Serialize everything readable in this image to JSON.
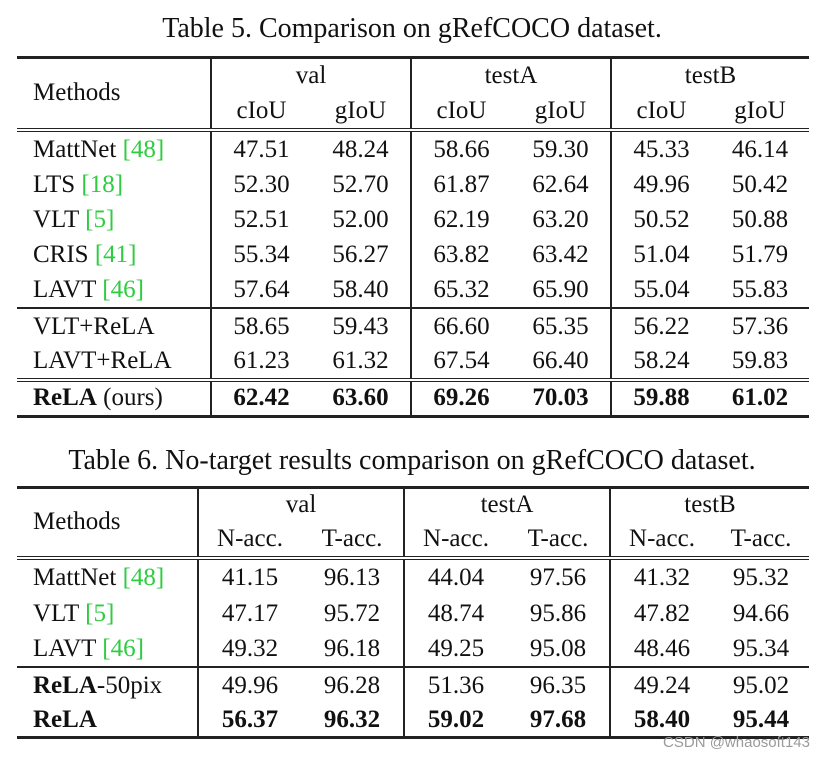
{
  "table5": {
    "caption": "Table 5. Comparison on gRefCOCO dataset.",
    "header": {
      "methods": "Methods",
      "groups": [
        "val",
        "testA",
        "testB"
      ],
      "metrics": [
        "cIoU",
        "gIoU",
        "cIoU",
        "gIoU",
        "cIoU",
        "gIoU"
      ]
    },
    "rows": [
      {
        "name": "MattNet",
        "cite": "48",
        "values": [
          "47.51",
          "48.24",
          "58.66",
          "59.30",
          "45.33",
          "46.14"
        ]
      },
      {
        "name": "LTS",
        "cite": "18",
        "values": [
          "52.30",
          "52.70",
          "61.87",
          "62.64",
          "49.96",
          "50.42"
        ]
      },
      {
        "name": "VLT",
        "cite": "5",
        "values": [
          "52.51",
          "52.00",
          "62.19",
          "63.20",
          "50.52",
          "50.88"
        ]
      },
      {
        "name": "CRIS",
        "cite": "41",
        "values": [
          "55.34",
          "56.27",
          "63.82",
          "63.42",
          "51.04",
          "51.79"
        ]
      },
      {
        "name": "LAVT",
        "cite": "46",
        "values": [
          "57.64",
          "58.40",
          "65.32",
          "65.90",
          "55.04",
          "55.83"
        ]
      },
      {
        "name": "VLT+ReLA",
        "values": [
          "58.65",
          "59.43",
          "66.60",
          "65.35",
          "56.22",
          "57.36"
        ]
      },
      {
        "name": "LAVT+ReLA",
        "values": [
          "61.23",
          "61.32",
          "67.54",
          "66.40",
          "58.24",
          "59.83"
        ]
      },
      {
        "name": "ReLA",
        "suffix": "(ours)",
        "values": [
          "62.42",
          "63.60",
          "69.26",
          "70.03",
          "59.88",
          "61.02"
        ]
      }
    ]
  },
  "table6": {
    "caption": "Table 6. No-target results comparison on gRefCOCO dataset.",
    "header": {
      "methods": "Methods",
      "groups": [
        "val",
        "testA",
        "testB"
      ],
      "metrics": [
        "N-acc.",
        "T-acc.",
        "N-acc.",
        "T-acc.",
        "N-acc.",
        "T-acc."
      ]
    },
    "rows": [
      {
        "name": "MattNet",
        "cite": "48",
        "values": [
          "41.15",
          "96.13",
          "44.04",
          "97.56",
          "41.32",
          "95.32"
        ]
      },
      {
        "name": "VLT",
        "cite": "5",
        "values": [
          "47.17",
          "95.72",
          "48.74",
          "95.86",
          "47.82",
          "94.66"
        ]
      },
      {
        "name": "LAVT",
        "cite": "46",
        "values": [
          "49.32",
          "96.18",
          "49.25",
          "95.08",
          "48.46",
          "95.34"
        ]
      },
      {
        "name": "ReLA",
        "suffix": "-50pix",
        "values": [
          "49.96",
          "96.28",
          "51.36",
          "96.35",
          "49.24",
          "95.02"
        ]
      },
      {
        "name": "ReLA",
        "values": [
          "56.37",
          "96.32",
          "59.02",
          "97.68",
          "58.40",
          "95.44"
        ]
      }
    ]
  },
  "watermark": "CSDN @whaosoft143"
}
